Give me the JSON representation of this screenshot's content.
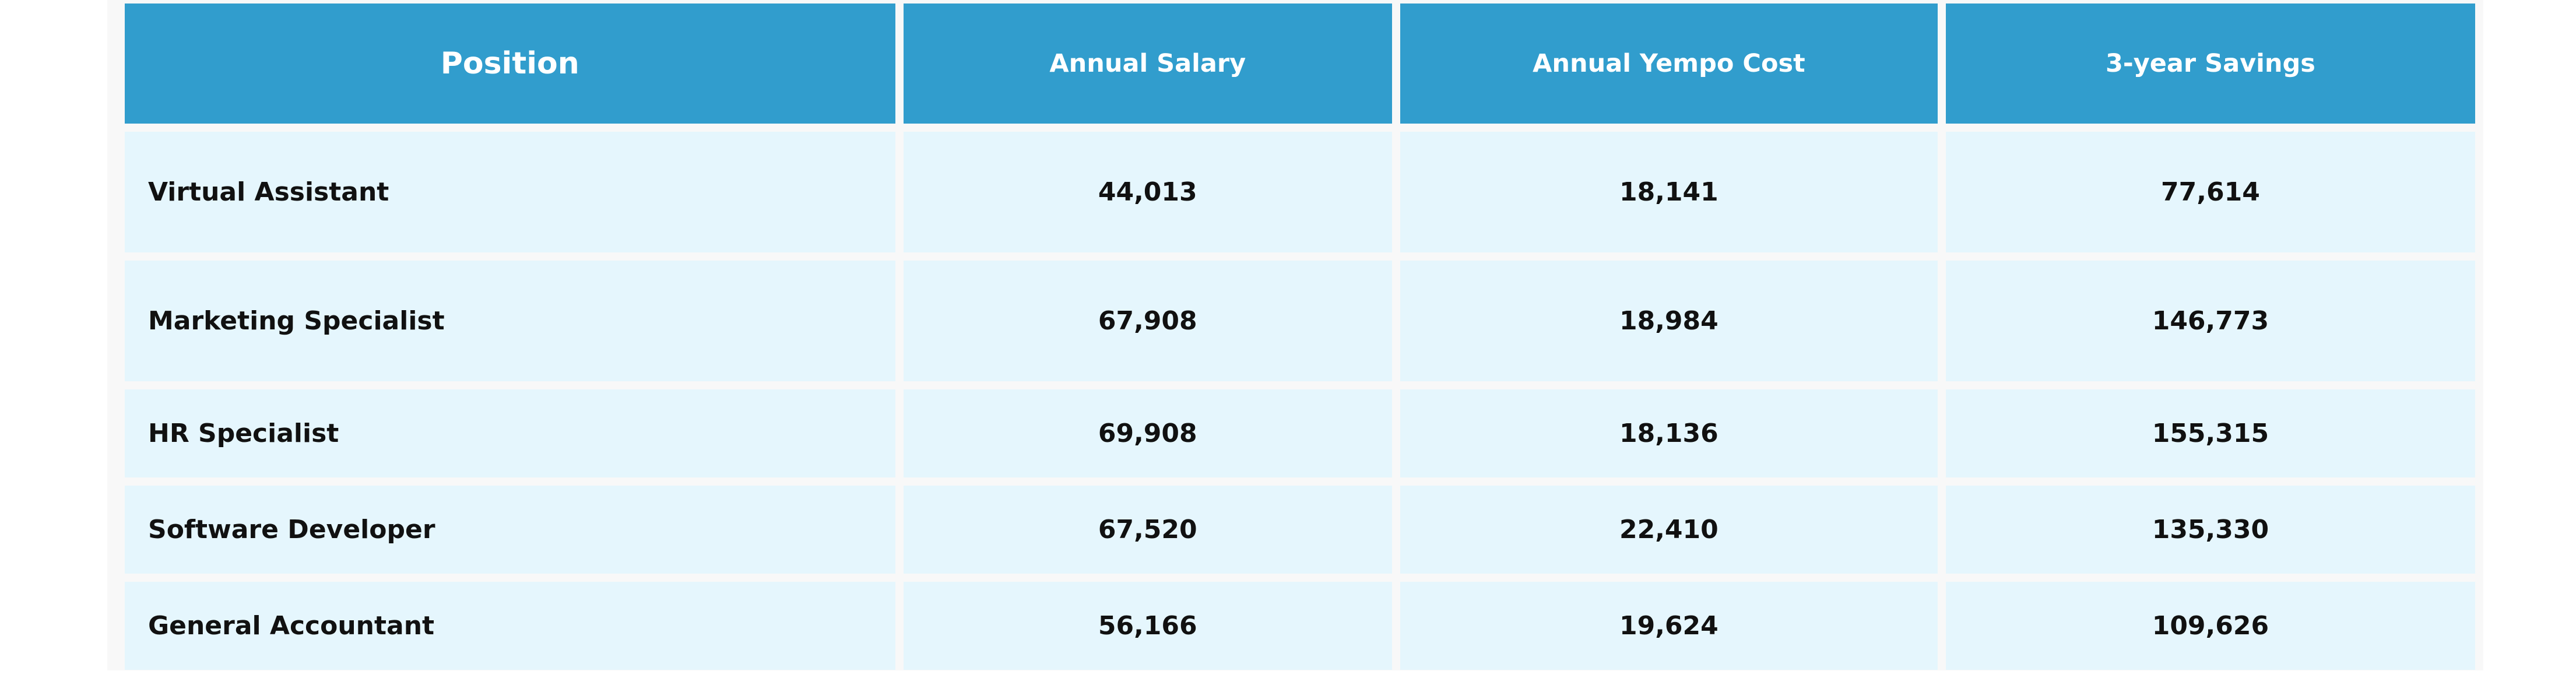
{
  "table": {
    "headers": [
      "Position",
      "Annual Salary",
      "Annual Yempo Cost",
      "3-year Savings"
    ],
    "rows": [
      [
        "Virtual Assistant",
        "44,013",
        "18,141",
        "77,614"
      ],
      [
        "Marketing Specialist",
        "67,908",
        "18,984",
        "146,773"
      ],
      [
        "HR Specialist",
        "69,908",
        "18,136",
        "155,315"
      ],
      [
        "Software Developer",
        "67,520",
        "22,410",
        "135,330"
      ],
      [
        "General Accountant",
        "56,166",
        "19,624",
        "109,626"
      ]
    ]
  },
  "colors": {
    "header_bg": "#319dcd",
    "header_text": "#ffffff",
    "row_bg": "#e5f6fd",
    "row_text": "#111111"
  }
}
